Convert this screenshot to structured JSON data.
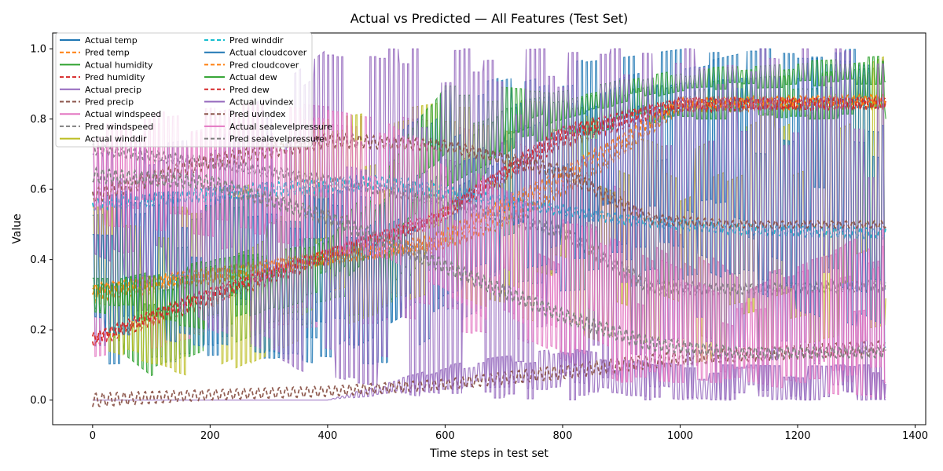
{
  "chart_data": {
    "type": "line",
    "title": "Actual vs Predicted — All Features (Test Set)",
    "xlabel": "Time steps in test set",
    "ylabel": "Value",
    "xlim": [
      -68,
      1418
    ],
    "ylim": [
      -0.07,
      1.045
    ],
    "xticks": [
      0,
      200,
      400,
      600,
      800,
      1000,
      1200,
      1400
    ],
    "yticks": [
      0.0,
      0.2,
      0.4,
      0.6,
      0.8,
      1.0
    ],
    "grid": false,
    "legend_position": "top-left",
    "legend_columns": 2,
    "x_range": [
      0,
      1350
    ],
    "series": [
      {
        "name": "Actual temp",
        "color": "#1f77b4",
        "style": "solid",
        "period": 8,
        "envelope": [
          [
            0,
            0.1,
            0.58
          ],
          [
            300,
            0.12,
            0.62
          ],
          [
            500,
            0.1,
            0.6
          ],
          [
            700,
            0.3,
            0.75
          ],
          [
            900,
            0.32,
            0.92
          ],
          [
            1100,
            0.35,
            0.99
          ],
          [
            1350,
            0.3,
            0.98
          ]
        ]
      },
      {
        "name": "Pred temp",
        "color": "#ff7f0e",
        "style": "dashed",
        "period": 10,
        "envelope": [
          [
            0,
            0.28,
            0.32
          ],
          [
            200,
            0.33,
            0.37
          ],
          [
            400,
            0.39,
            0.42
          ],
          [
            580,
            0.42,
            0.45
          ],
          [
            700,
            0.49,
            0.52
          ],
          [
            850,
            0.63,
            0.66
          ],
          [
            1000,
            0.82,
            0.85
          ],
          [
            1350,
            0.83,
            0.86
          ]
        ]
      },
      {
        "name": "Actual humidity",
        "color": "#2ca02c",
        "style": "solid",
        "period": 9,
        "envelope": [
          [
            0,
            0.2,
            0.35
          ],
          [
            100,
            0.07,
            0.35
          ],
          [
            300,
            0.2,
            0.45
          ],
          [
            500,
            0.25,
            0.48
          ],
          [
            700,
            0.72,
            0.85
          ],
          [
            1000,
            0.8,
            0.9
          ],
          [
            1350,
            0.8,
            0.95
          ]
        ]
      },
      {
        "name": "Pred humidity",
        "color": "#d62728",
        "style": "dashed",
        "period": 10,
        "envelope": [
          [
            0,
            0.15,
            0.18
          ],
          [
            200,
            0.27,
            0.31
          ],
          [
            400,
            0.39,
            0.43
          ],
          [
            580,
            0.49,
            0.53
          ],
          [
            800,
            0.72,
            0.77
          ],
          [
            1000,
            0.82,
            0.86
          ],
          [
            1350,
            0.83,
            0.86
          ]
        ]
      },
      {
        "name": "Actual precip",
        "color": "#9467bd",
        "style": "solid",
        "period": 7,
        "envelope": [
          [
            0,
            0.0,
            0.0
          ],
          [
            400,
            0.0,
            0.0
          ],
          [
            600,
            0.03,
            0.1
          ],
          [
            800,
            0.03,
            0.15
          ],
          [
            1000,
            0.0,
            0.1
          ],
          [
            1350,
            0.0,
            0.1
          ]
        ]
      },
      {
        "name": "Pred precip",
        "color": "#8c564b",
        "style": "dashed",
        "period": 12,
        "envelope": [
          [
            0,
            -0.02,
            0.02
          ],
          [
            200,
            0.0,
            0.03
          ],
          [
            400,
            0.01,
            0.04
          ],
          [
            600,
            0.03,
            0.06
          ],
          [
            800,
            0.06,
            0.1
          ],
          [
            1000,
            0.1,
            0.14
          ],
          [
            1350,
            0.13,
            0.17
          ]
        ]
      },
      {
        "name": "Actual windspeed",
        "color": "#e377c2",
        "style": "solid",
        "period": 8,
        "envelope": [
          [
            0,
            0.12,
            0.75
          ],
          [
            300,
            0.2,
            0.85
          ],
          [
            500,
            0.22,
            0.82
          ],
          [
            700,
            0.18,
            0.75
          ],
          [
            900,
            0.05,
            0.6
          ],
          [
            1100,
            0.05,
            0.35
          ],
          [
            1350,
            0.0,
            0.45
          ]
        ]
      },
      {
        "name": "Pred windspeed",
        "color": "#7f7f7f",
        "style": "dashed",
        "period": 10,
        "envelope": [
          [
            0,
            0.7,
            0.73
          ],
          [
            200,
            0.66,
            0.69
          ],
          [
            400,
            0.61,
            0.64
          ],
          [
            600,
            0.55,
            0.58
          ],
          [
            800,
            0.46,
            0.5
          ],
          [
            950,
            0.3,
            0.34
          ],
          [
            1100,
            0.3,
            0.33
          ],
          [
            1350,
            0.31,
            0.34
          ]
        ]
      },
      {
        "name": "Actual winddir",
        "color": "#bcbd22",
        "style": "solid",
        "period": 9,
        "envelope": [
          [
            0,
            0.15,
            0.55
          ],
          [
            200,
            0.05,
            0.55
          ],
          [
            400,
            0.2,
            0.8
          ],
          [
            600,
            0.3,
            0.85
          ],
          [
            800,
            0.2,
            0.85
          ],
          [
            1000,
            0.1,
            0.7
          ],
          [
            1350,
            0.2,
            0.98
          ]
        ]
      },
      {
        "name": "Pred winddir",
        "color": "#17becf",
        "style": "dashed",
        "period": 11,
        "envelope": [
          [
            0,
            0.54,
            0.57
          ],
          [
            300,
            0.58,
            0.62
          ],
          [
            500,
            0.6,
            0.64
          ],
          [
            700,
            0.55,
            0.58
          ],
          [
            900,
            0.5,
            0.53
          ],
          [
            1100,
            0.47,
            0.5
          ],
          [
            1350,
            0.46,
            0.49
          ]
        ]
      },
      {
        "name": "Actual cloudcover",
        "color": "#1f77b4",
        "style": "solid",
        "period": 7,
        "envelope": [
          [
            0,
            0.2,
            0.6
          ],
          [
            400,
            0.1,
            0.58
          ],
          [
            600,
            0.3,
            0.88
          ],
          [
            800,
            0.4,
            0.96
          ],
          [
            1000,
            0.4,
            1.0
          ],
          [
            1350,
            0.15,
            1.0
          ]
        ]
      },
      {
        "name": "Pred cloudcover",
        "color": "#ff7f0e",
        "style": "dashed",
        "period": 10,
        "envelope": [
          [
            0,
            0.3,
            0.33
          ],
          [
            300,
            0.36,
            0.4
          ],
          [
            580,
            0.43,
            0.47
          ],
          [
            800,
            0.62,
            0.66
          ],
          [
            1000,
            0.83,
            0.86
          ],
          [
            1350,
            0.84,
            0.87
          ]
        ]
      },
      {
        "name": "Actual dew",
        "color": "#2ca02c",
        "style": "solid",
        "period": 8,
        "envelope": [
          [
            0,
            0.25,
            0.33
          ],
          [
            200,
            0.2,
            0.4
          ],
          [
            400,
            0.3,
            0.45
          ],
          [
            600,
            0.6,
            0.9
          ],
          [
            800,
            0.8,
            0.88
          ],
          [
            1000,
            0.88,
            0.94
          ],
          [
            1350,
            0.9,
            0.98
          ]
        ]
      },
      {
        "name": "Pred dew",
        "color": "#d62728",
        "style": "dashed",
        "period": 10,
        "envelope": [
          [
            0,
            0.16,
            0.19
          ],
          [
            200,
            0.29,
            0.32
          ],
          [
            400,
            0.4,
            0.43
          ],
          [
            580,
            0.5,
            0.53
          ],
          [
            800,
            0.74,
            0.78
          ],
          [
            1000,
            0.83,
            0.86
          ],
          [
            1350,
            0.83,
            0.86
          ]
        ]
      },
      {
        "name": "Actual uvindex",
        "color": "#9467bd",
        "style": "solid",
        "period": 6,
        "envelope": [
          [
            0,
            0.4,
            0.7
          ],
          [
            200,
            0.2,
            0.75
          ],
          [
            400,
            0.05,
            1.0
          ],
          [
            600,
            0.0,
            1.0
          ],
          [
            800,
            0.0,
            1.0
          ],
          [
            1000,
            0.0,
            1.0
          ],
          [
            1350,
            0.0,
            1.0
          ]
        ]
      },
      {
        "name": "Pred uvindex",
        "color": "#8c564b",
        "style": "dashed",
        "period": 12,
        "envelope": [
          [
            0,
            0.56,
            0.6
          ],
          [
            200,
            0.66,
            0.7
          ],
          [
            400,
            0.72,
            0.76
          ],
          [
            600,
            0.71,
            0.74
          ],
          [
            800,
            0.63,
            0.67
          ],
          [
            950,
            0.5,
            0.53
          ],
          [
            1100,
            0.49,
            0.51
          ],
          [
            1350,
            0.49,
            0.51
          ]
        ]
      },
      {
        "name": "Actual sealevelpressure",
        "color": "#e377c2",
        "style": "solid",
        "period": 7,
        "envelope": [
          [
            0,
            0.5,
            0.8
          ],
          [
            300,
            0.45,
            0.85
          ],
          [
            500,
            0.4,
            0.8
          ],
          [
            700,
            0.2,
            0.6
          ],
          [
            900,
            0.05,
            0.45
          ],
          [
            1100,
            0.05,
            0.3
          ],
          [
            1350,
            0.05,
            0.5
          ]
        ]
      },
      {
        "name": "Pred sealevelpressure",
        "color": "#7f7f7f",
        "style": "dashed",
        "period": 11,
        "envelope": [
          [
            0,
            0.62,
            0.66
          ],
          [
            200,
            0.6,
            0.64
          ],
          [
            400,
            0.5,
            0.54
          ],
          [
            600,
            0.36,
            0.4
          ],
          [
            800,
            0.22,
            0.26
          ],
          [
            950,
            0.14,
            0.18
          ],
          [
            1100,
            0.12,
            0.15
          ],
          [
            1350,
            0.12,
            0.15
          ]
        ]
      }
    ]
  }
}
